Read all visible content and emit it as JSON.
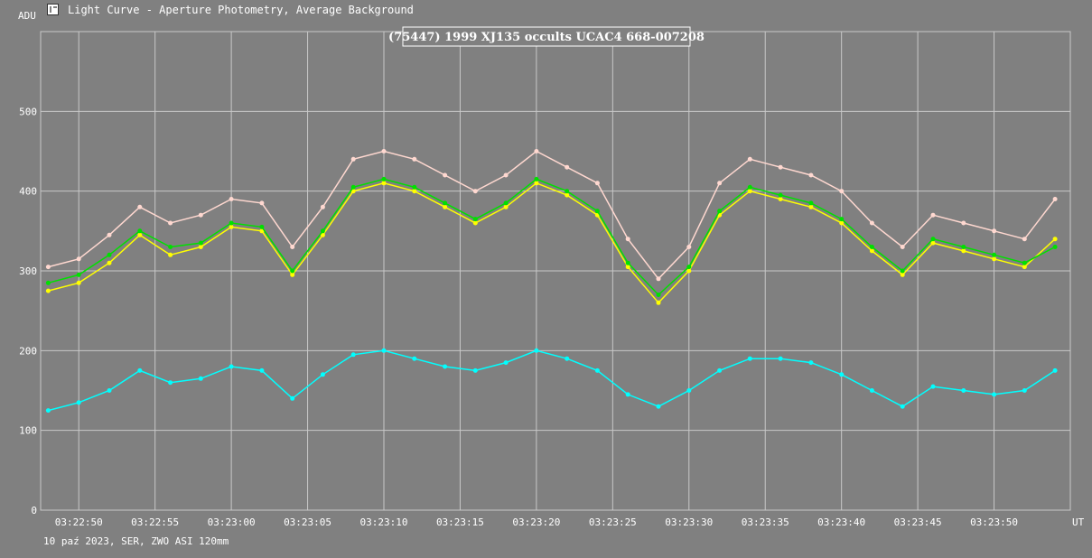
{
  "window": {
    "title": "Light Curve - Aperture Photometry, Average Background",
    "icon": "app-icon"
  },
  "footer": {
    "text": "10 paź 2023, SER, ZWO ASI 120mm"
  },
  "colors": {
    "background": "#808080",
    "grid": "#c8c8c8",
    "text": "#ffffff",
    "series_pink": "#ffd8d0",
    "series_yellow": "#ffff00",
    "series_green": "#00e000",
    "series_cyan": "#00ffff"
  },
  "chart_data": {
    "type": "line",
    "title": "(75447) 1999 XJ135 occults UCAC4 668-007208",
    "ylabel": "ADU",
    "xlabel": "UT",
    "ylim": [
      0,
      600
    ],
    "yticks": [
      0,
      100,
      200,
      300,
      400,
      500
    ],
    "xlim": [
      "03:22:47.5",
      "03:23:55.0"
    ],
    "xlim_seconds": [
      47.5,
      115.0
    ],
    "xticks": [
      "03:22:50",
      "03:22:55",
      "03:23:00",
      "03:23:05",
      "03:23:10",
      "03:23:15",
      "03:23:20",
      "03:23:25",
      "03:23:30",
      "03:23:35",
      "03:23:40",
      "03:23:45",
      "03:23:50"
    ],
    "grid": true,
    "series": [
      {
        "color": "#ffd8d0",
        "x": [
          "03:22:48",
          "03:22:50",
          "03:22:52",
          "03:22:54",
          "03:22:56",
          "03:22:58",
          "03:23:00",
          "03:23:02",
          "03:23:04",
          "03:23:06",
          "03:23:08",
          "03:23:10",
          "03:23:12",
          "03:23:14",
          "03:23:16",
          "03:23:18",
          "03:23:20",
          "03:23:22",
          "03:23:24",
          "03:23:26",
          "03:23:28",
          "03:23:30",
          "03:23:32",
          "03:23:34",
          "03:23:36",
          "03:23:38",
          "03:23:40",
          "03:23:42",
          "03:23:44",
          "03:23:46",
          "03:23:48",
          "03:23:50",
          "03:23:52",
          "03:23:54"
        ],
        "values": [
          305,
          315,
          345,
          380,
          360,
          370,
          390,
          385,
          330,
          380,
          440,
          450,
          440,
          420,
          400,
          420,
          450,
          430,
          410,
          340,
          290,
          330,
          410,
          440,
          430,
          420,
          400,
          360,
          330,
          370,
          360,
          350,
          340,
          390
        ]
      },
      {
        "color": "#ffff00",
        "x": [
          "03:22:48",
          "03:22:50",
          "03:22:52",
          "03:22:54",
          "03:22:56",
          "03:22:58",
          "03:23:00",
          "03:23:02",
          "03:23:04",
          "03:23:06",
          "03:23:08",
          "03:23:10",
          "03:23:12",
          "03:23:14",
          "03:23:16",
          "03:23:18",
          "03:23:20",
          "03:23:22",
          "03:23:24",
          "03:23:26",
          "03:23:28",
          "03:23:30",
          "03:23:32",
          "03:23:34",
          "03:23:36",
          "03:23:38",
          "03:23:40",
          "03:23:42",
          "03:23:44",
          "03:23:46",
          "03:23:48",
          "03:23:50",
          "03:23:52",
          "03:23:54"
        ],
        "values": [
          275,
          285,
          310,
          345,
          320,
          330,
          355,
          350,
          295,
          345,
          400,
          410,
          400,
          380,
          360,
          380,
          410,
          395,
          370,
          305,
          260,
          300,
          370,
          400,
          390,
          380,
          360,
          325,
          295,
          335,
          325,
          315,
          305,
          340
        ]
      },
      {
        "color": "#00e000",
        "x": [
          "03:22:48",
          "03:22:50",
          "03:22:52",
          "03:22:54",
          "03:22:56",
          "03:22:58",
          "03:23:00",
          "03:23:02",
          "03:23:04",
          "03:23:06",
          "03:23:08",
          "03:23:10",
          "03:23:12",
          "03:23:14",
          "03:23:16",
          "03:23:18",
          "03:23:20",
          "03:23:22",
          "03:23:24",
          "03:23:26",
          "03:23:28",
          "03:23:30",
          "03:23:32",
          "03:23:34",
          "03:23:36",
          "03:23:38",
          "03:23:40",
          "03:23:42",
          "03:23:44",
          "03:23:46",
          "03:23:48",
          "03:23:50",
          "03:23:52",
          "03:23:54"
        ],
        "values": [
          285,
          295,
          320,
          350,
          330,
          335,
          360,
          355,
          300,
          350,
          405,
          415,
          405,
          385,
          365,
          385,
          415,
          400,
          375,
          310,
          270,
          305,
          375,
          405,
          395,
          385,
          365,
          330,
          300,
          340,
          330,
          320,
          310,
          330
        ]
      },
      {
        "color": "#00ffff",
        "x": [
          "03:22:48",
          "03:22:50",
          "03:22:52",
          "03:22:54",
          "03:22:56",
          "03:22:58",
          "03:23:00",
          "03:23:02",
          "03:23:04",
          "03:23:06",
          "03:23:08",
          "03:23:10",
          "03:23:12",
          "03:23:14",
          "03:23:16",
          "03:23:18",
          "03:23:20",
          "03:23:22",
          "03:23:24",
          "03:23:26",
          "03:23:28",
          "03:23:30",
          "03:23:32",
          "03:23:34",
          "03:23:36",
          "03:23:38",
          "03:23:40",
          "03:23:42",
          "03:23:44",
          "03:23:46",
          "03:23:48",
          "03:23:50",
          "03:23:52",
          "03:23:54"
        ],
        "values": [
          125,
          135,
          150,
          175,
          160,
          165,
          180,
          175,
          140,
          170,
          195,
          200,
          190,
          180,
          175,
          185,
          200,
          190,
          175,
          145,
          130,
          150,
          175,
          190,
          190,
          185,
          170,
          150,
          130,
          155,
          150,
          145,
          150,
          175
        ]
      }
    ]
  }
}
